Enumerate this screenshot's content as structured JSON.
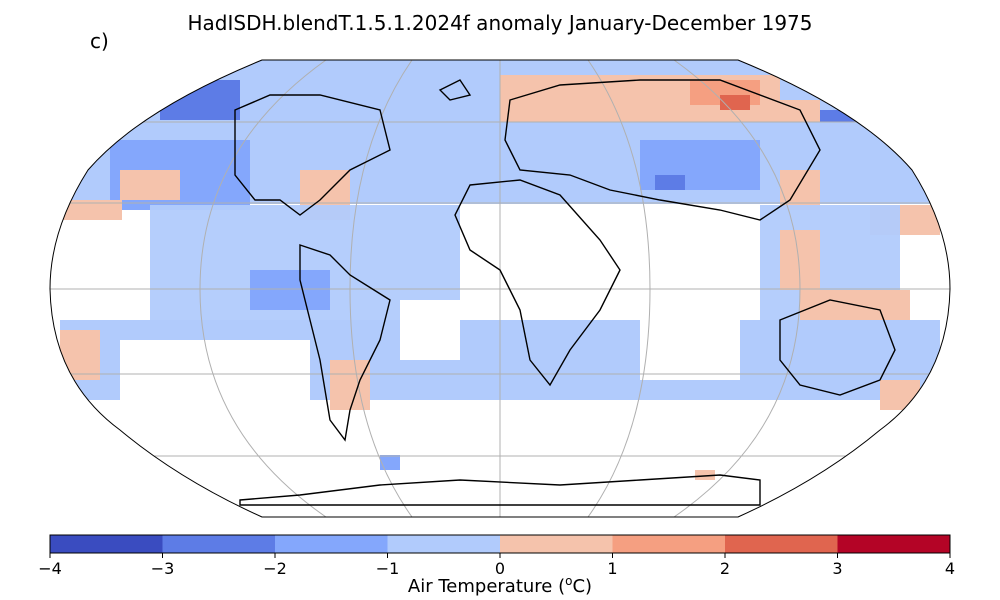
{
  "figure": {
    "title": "HadISDH.blendT.1.5.1.2024f anomaly January-December 1975",
    "panel_label": "c)",
    "colorbar_label_main": "Air Temperature (",
    "colorbar_label_sup": "o",
    "colorbar_label_unit": "C)"
  },
  "colorbar": {
    "ticks": [
      "−4",
      "−3",
      "−2",
      "−1",
      "0",
      "1",
      "2",
      "3",
      "4"
    ],
    "colors": [
      "#3a4cc0",
      "#5d7ce6",
      "#84a7fc",
      "#b1cbfc",
      "#f5c3ac",
      "#f59f81",
      "#e0654f",
      "#b40426"
    ]
  },
  "map": {
    "projection": "Robinson",
    "land_fill": "none",
    "coastline_color": "#000000",
    "gridline_color": "#b0b0b0",
    "missing_data_color": "#ffffff"
  }
}
